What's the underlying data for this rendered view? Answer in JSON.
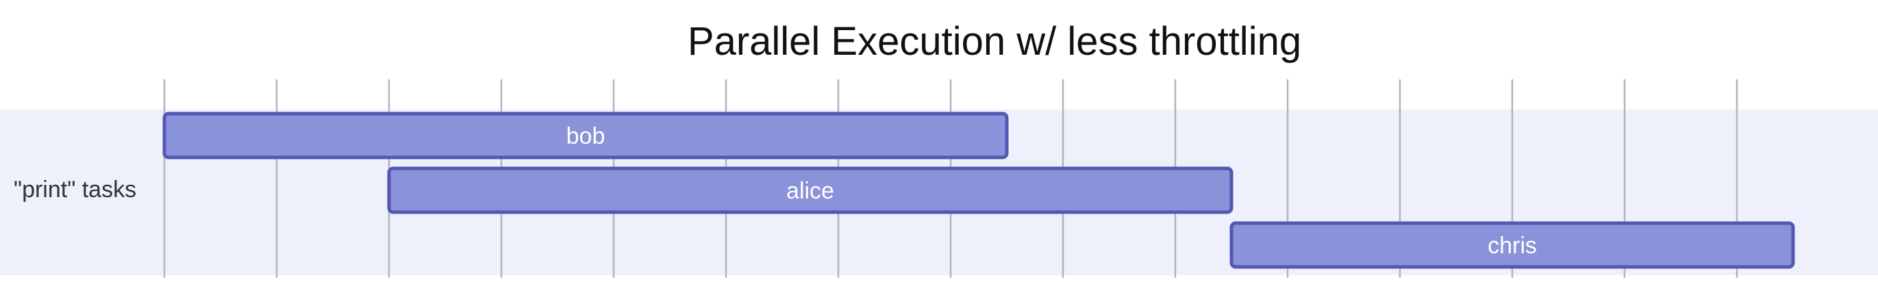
{
  "title": "Parallel Execution w/ less throttling",
  "section": {
    "label": "\"print\" tasks"
  },
  "timeline": {
    "start": 0,
    "end": 14.5,
    "grid_ticks": [
      0,
      1,
      2,
      3,
      4,
      5,
      6,
      7,
      8,
      9,
      10,
      11,
      12,
      13,
      14
    ]
  },
  "tasks": [
    {
      "name": "bob",
      "start": 0,
      "end": 7.5
    },
    {
      "name": "alice",
      "start": 2,
      "end": 9.5
    },
    {
      "name": "chris",
      "start": 9.5,
      "end": 14.5
    }
  ],
  "colors": {
    "section_band": "#eef0fb",
    "grid": "#b3b3b8",
    "task_fill": "#8a93d9",
    "task_stroke": "#5058b3"
  }
}
